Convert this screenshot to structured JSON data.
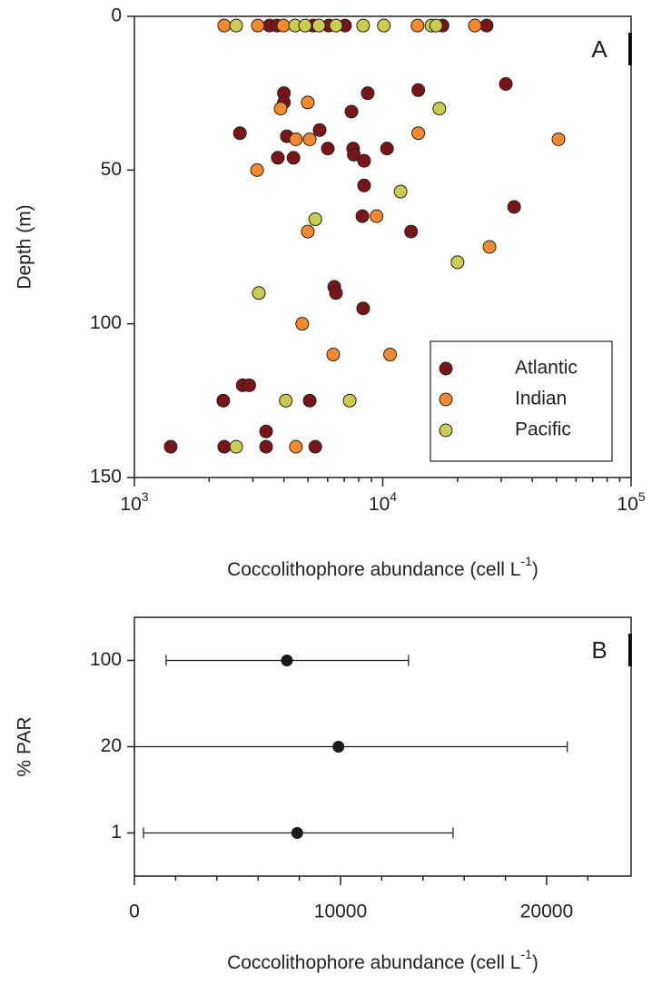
{
  "chart_data": [
    {
      "type": "scatter",
      "annotation": "A",
      "xlog": true,
      "ylabel": "Depth (m)",
      "xlabel": "Coccolithophore abundance (cell L",
      "xlabel_sup": "-1",
      "xlabel_end": ")",
      "xlim": [
        1000,
        100000
      ],
      "ylim": [
        150,
        0
      ],
      "xticks": [
        {
          "value": 1000,
          "label": "10",
          "superscript": "3"
        },
        {
          "value": 10000,
          "label": "10",
          "superscript": "4"
        },
        {
          "value": 100000,
          "label": "10",
          "superscript": "5"
        }
      ],
      "xticks_minor": [
        2000,
        3000,
        4000,
        5000,
        6000,
        7000,
        8000,
        9000,
        20000,
        30000,
        40000,
        50000,
        60000,
        70000,
        80000,
        90000
      ],
      "yticks": [
        0,
        50,
        100,
        150
      ],
      "legend": "bottom-right",
      "series": [
        {
          "name": "Atlantic",
          "color": "#7a1418",
          "x": [
            3500,
            3750,
            5250,
            6060,
            7050,
            17400,
            26200,
            31300,
            13900,
            8700,
            4000,
            4000,
            7480,
            5570,
            2660,
            4110,
            6010,
            7600,
            10400,
            7650,
            3780,
            4370,
            8410,
            8410,
            33800,
            8280,
            13000,
            6380,
            6480,
            8340,
            2730,
            2900,
            2280,
            5080,
            3390,
            1400,
            2300,
            3390,
            5350
          ],
          "y": [
            3,
            3,
            3,
            3,
            3,
            3,
            3,
            22,
            24,
            25,
            25,
            28,
            31,
            37,
            38,
            39,
            43,
            43,
            43,
            45,
            46,
            46,
            47,
            55,
            62,
            65,
            70,
            88,
            90,
            95,
            120,
            120,
            125,
            125,
            135,
            140,
            140,
            140,
            140
          ]
        },
        {
          "name": "Indian",
          "color": "#f5892b",
          "x": [
            2300,
            3140,
            3980,
            13800,
            23500,
            4990,
            3880,
            13900,
            51000,
            4470,
            5080,
            3120,
            9440,
            4990,
            26900,
            4740,
            6320,
            10700,
            4470
          ],
          "y": [
            3,
            3,
            3,
            3,
            3,
            28,
            30,
            38,
            40,
            40,
            40,
            50,
            65,
            70,
            75,
            100,
            110,
            110,
            140
          ]
        },
        {
          "name": "Pacific",
          "color": "#c9cc4c",
          "x": [
            2570,
            4440,
            4870,
            5530,
            6480,
            8340,
            10100,
            15700,
            16400,
            16900,
            11800,
            5350,
            20000,
            3170,
            4070,
            7360,
            2570
          ],
          "y": [
            3,
            3,
            3,
            3,
            3,
            3,
            3,
            3,
            3,
            30,
            57,
            66,
            80,
            90,
            125,
            125,
            140
          ]
        }
      ]
    },
    {
      "type": "errorbar",
      "annotation": "B",
      "ylabel": "% PAR",
      "xlabel": "Coccolithophore abundance (cell L",
      "xlabel_sup": "-1",
      "xlabel_end": ")",
      "xlim": [
        0,
        24100
      ],
      "xticks": [
        0,
        10000,
        20000
      ],
      "xticks_minor": [
        2000,
        4000,
        6000,
        8000,
        12000,
        14000,
        16000,
        18000,
        22000
      ],
      "categories": [
        "100",
        "20",
        "1"
      ],
      "color": "#1a1a1a",
      "values": [
        7400,
        9900,
        7900
      ],
      "error_minus": [
        5860,
        9900,
        7460
      ],
      "error_plus": [
        5900,
        11100,
        7560
      ]
    }
  ]
}
